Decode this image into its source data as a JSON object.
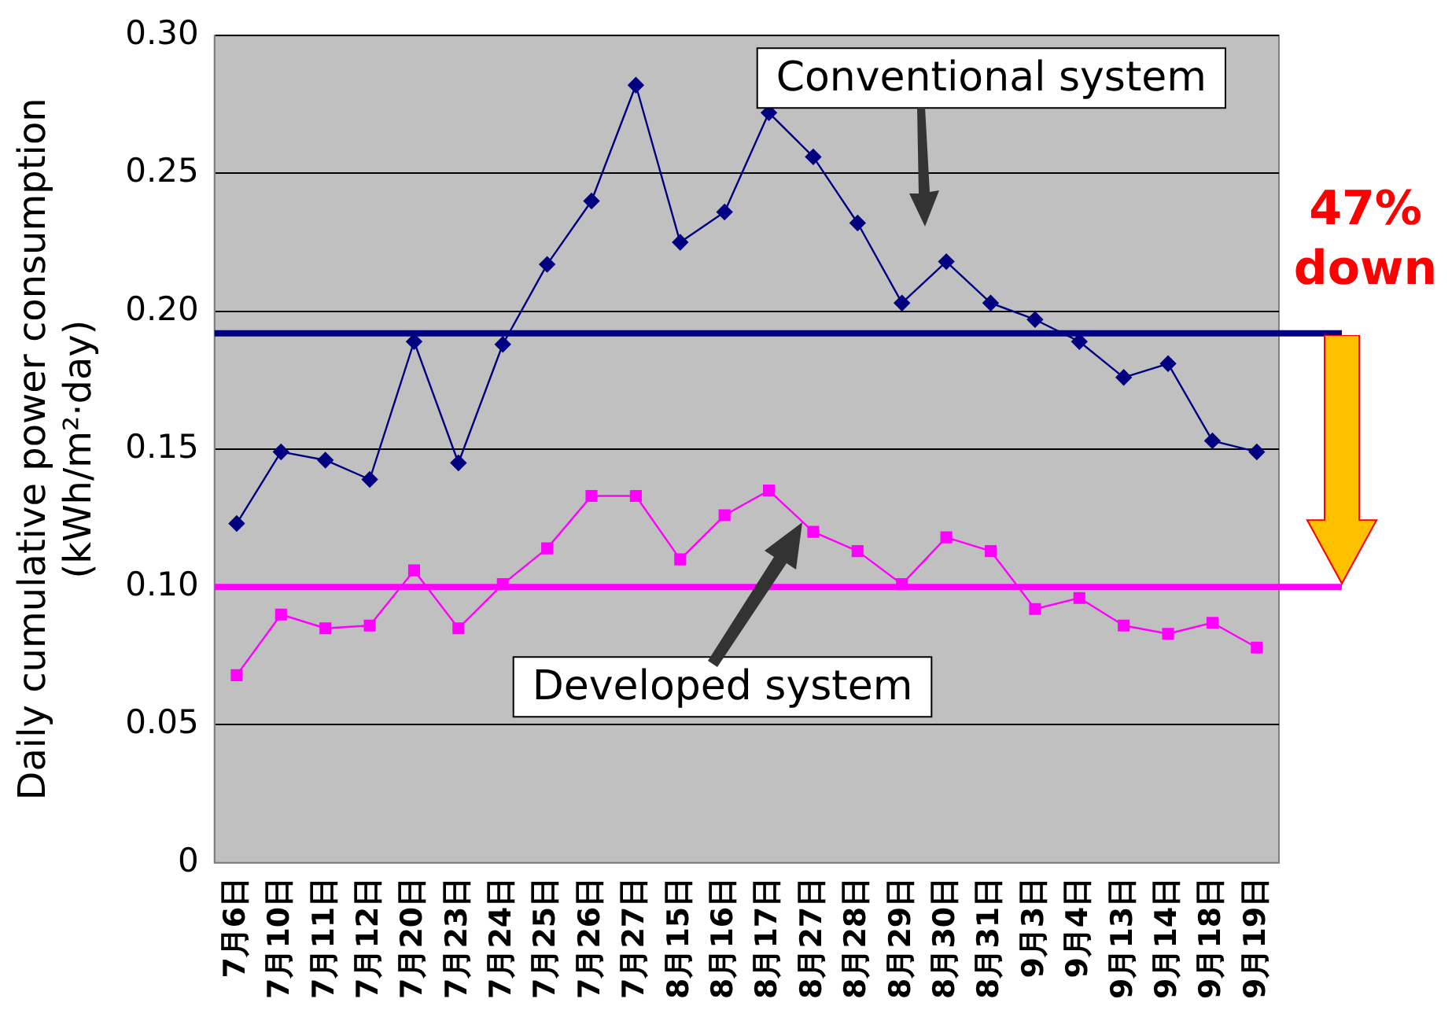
{
  "chart_data": {
    "type": "line",
    "ylabel": "Daily cumulative power consumption (kWh/m²·day)",
    "categories": [
      "7月6日",
      "7月10日",
      "7月11日",
      "7月12日",
      "7月20日",
      "7月23日",
      "7月24日",
      "7月25日",
      "7月26日",
      "7月27日",
      "8月15日",
      "8月16日",
      "8月17日",
      "8月27日",
      "8月28日",
      "8月29日",
      "8月30日",
      "8月31日",
      "9月3日",
      "9月4日",
      "9月13日",
      "9月14日",
      "9月18日",
      "9月19日"
    ],
    "series": [
      {
        "name": "Conventional system",
        "color": "#000080",
        "marker": "diamond",
        "values": [
          0.123,
          0.149,
          0.146,
          0.139,
          0.189,
          0.145,
          0.188,
          0.217,
          0.24,
          0.282,
          0.225,
          0.236,
          0.272,
          0.256,
          0.232,
          0.203,
          0.218,
          0.203,
          0.197,
          0.189,
          0.176,
          0.181,
          0.153,
          0.149
        ]
      },
      {
        "name": "Developed system",
        "color": "#ff00ff",
        "marker": "square",
        "values": [
          0.068,
          0.09,
          0.085,
          0.086,
          0.106,
          0.085,
          0.101,
          0.114,
          0.133,
          0.133,
          0.11,
          0.126,
          0.135,
          0.12,
          0.113,
          0.101,
          0.118,
          0.113,
          0.092,
          0.096,
          0.086,
          0.083,
          0.087,
          0.078
        ]
      }
    ],
    "ylim": [
      0,
      0.3
    ],
    "yticks": [
      {
        "value": 0,
        "label": "0"
      },
      0.05,
      {
        "value": 0.1,
        "label": "0.10"
      },
      0.15,
      {
        "value": 0.2,
        "label": "0.20"
      },
      0.25,
      {
        "value": 0.3,
        "label": "0.30"
      }
    ],
    "grid": "y",
    "legend": false,
    "ref_lines": [
      {
        "axis": "y",
        "value": 0.192,
        "color": "#000080"
      },
      {
        "axis": "y",
        "value": 0.1,
        "color": "#ff00ff"
      }
    ],
    "annotations": [
      "47% down"
    ]
  }
}
